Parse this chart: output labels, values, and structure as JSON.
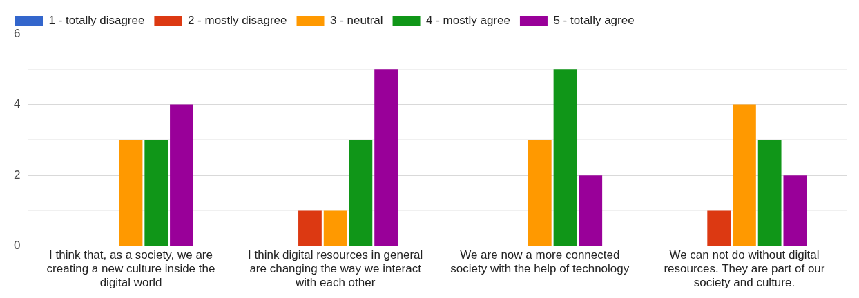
{
  "chart_data": {
    "type": "bar",
    "categories": [
      "I think that, as a society, we are creating a new culture inside the digital world",
      "I think digital resources in general are changing the way we interact with each other",
      "We are now a more connected society with the help of technology",
      "We can not do without digital resources. They are part of our society and culture."
    ],
    "series": [
      {
        "name": "1 - totally disagree",
        "color": "#3366cc",
        "values": [
          0,
          0,
          0,
          0
        ]
      },
      {
        "name": "2 - mostly disagree",
        "color": "#dc3912",
        "values": [
          0,
          1,
          0,
          1
        ]
      },
      {
        "name": "3 - neutral",
        "color": "#ff9900",
        "values": [
          3,
          1,
          3,
          4
        ]
      },
      {
        "name": "4 - mostly agree",
        "color": "#109618",
        "values": [
          3,
          3,
          5,
          3
        ]
      },
      {
        "name": "5 - totally agree",
        "color": "#990099",
        "values": [
          4,
          5,
          2,
          2
        ]
      }
    ],
    "ylim": [
      0,
      6
    ],
    "yticks": [
      0,
      {
        "value": 1,
        "label": null
      },
      2,
      {
        "value": 3,
        "label": null
      },
      4,
      {
        "value": 5,
        "label": null
      },
      6
    ],
    "grid": "y",
    "legend": "top left"
  }
}
